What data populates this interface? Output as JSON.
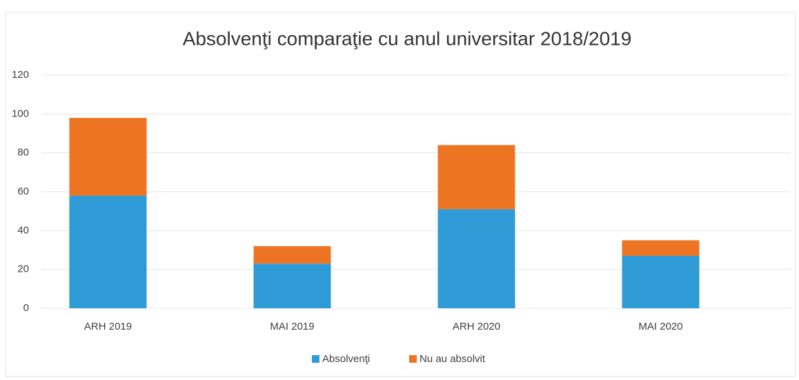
{
  "chart_data": {
    "type": "stacked_bar",
    "title": "Absolvenţi comparaţie cu anul universitar 2018/2019",
    "categories": [
      "ARH 2019",
      "MAI 2019",
      "ARH 2020",
      "MAI 2020"
    ],
    "series": [
      {
        "name": "Absolvenţi",
        "color": "#2e9bd6",
        "values": [
          58,
          23,
          51,
          27
        ]
      },
      {
        "name": "Nu au absolvit",
        "color": "#ed7423",
        "values": [
          40,
          9,
          33,
          8
        ]
      }
    ],
    "ylim": [
      0,
      120
    ],
    "yticks": [
      0,
      20,
      40,
      60,
      80,
      100,
      120
    ],
    "grid": true,
    "legend": "bottom"
  }
}
